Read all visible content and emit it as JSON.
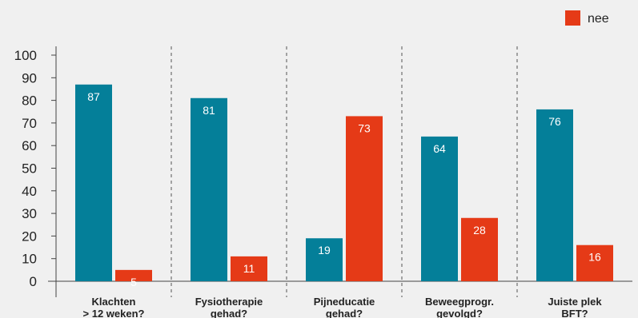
{
  "chart_data": {
    "type": "bar",
    "categories": [
      [
        "Klachten",
        "> 12 weken?"
      ],
      [
        "Fysiotherapie",
        "gehad?"
      ],
      [
        "Pijneducatie",
        "gehad?"
      ],
      [
        "Beweegprogr.",
        "gevolgd?"
      ],
      [
        "Juiste plek",
        "BFT?"
      ]
    ],
    "series": [
      {
        "values": [
          87,
          81,
          19,
          64,
          76
        ],
        "color": "#047f99"
      },
      {
        "name": "nee",
        "values": [
          5,
          11,
          73,
          28,
          16
        ],
        "color": "#e53a17"
      }
    ],
    "ylim": [
      0,
      100
    ],
    "yticks": [
      0,
      10,
      20,
      30,
      40,
      50,
      60,
      70,
      80,
      90,
      100
    ],
    "legend_position": "top-right",
    "separators": "dashed"
  }
}
